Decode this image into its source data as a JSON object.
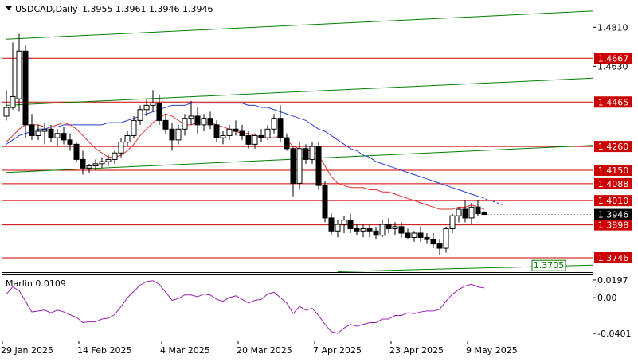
{
  "header": {
    "symbol": "USDCAD,Daily",
    "ohlc": "1.3955 1.3961 1.3946 1.3946"
  },
  "indicator": {
    "label": "Marlin 0.0109",
    "axis_ticks": [
      "0.0197",
      "0.00",
      "-0.0401"
    ]
  },
  "colors": {
    "candle": "#000000",
    "support_resistance": "#cc0000",
    "channel": "#008000",
    "ma_fast": "#e03030",
    "ma_slow": "#2a3fd6",
    "oscillator": "#9b1fb3",
    "current_price_tag": "#000000"
  },
  "chart_data": {
    "type": "candlestick",
    "symbol": "USDCAD",
    "timeframe": "Daily",
    "ylim": [
      1.368,
      1.4925
    ],
    "price_axis_ticks": [
      1.481,
      1.463
    ],
    "horizontal_levels": [
      1.4667,
      1.4465,
      1.426,
      1.415,
      1.4088,
      1.401,
      1.3898,
      1.3746
    ],
    "current_price": 1.3946,
    "channel_label": "1.3705",
    "x_labels": [
      "29 Jan 2025",
      "14 Feb 2025",
      "4 Mar 2025",
      "20 Mar 2025",
      "7 Apr 2025",
      "23 Apr 2025",
      "9 May 2025"
    ],
    "x_label_index": [
      0,
      12,
      25,
      37,
      49,
      61,
      73
    ],
    "candles": [
      [
        1.44,
        1.452,
        1.438,
        1.444
      ],
      [
        1.444,
        1.474,
        1.443,
        1.449
      ],
      [
        1.448,
        1.478,
        1.442,
        1.47
      ],
      [
        1.47,
        1.473,
        1.43,
        1.436
      ],
      [
        1.436,
        1.441,
        1.429,
        1.431
      ],
      [
        1.431,
        1.436,
        1.429,
        1.433
      ],
      [
        1.433,
        1.437,
        1.427,
        1.434
      ],
      [
        1.434,
        1.436,
        1.428,
        1.43
      ],
      [
        1.43,
        1.434,
        1.426,
        1.432
      ],
      [
        1.432,
        1.435,
        1.427,
        1.429
      ],
      [
        1.429,
        1.432,
        1.424,
        1.427
      ],
      [
        1.427,
        1.428,
        1.419,
        1.42
      ],
      [
        1.42,
        1.424,
        1.413,
        1.416
      ],
      [
        1.416,
        1.418,
        1.414,
        1.417
      ],
      [
        1.417,
        1.42,
        1.415,
        1.418
      ],
      [
        1.418,
        1.421,
        1.416,
        1.419
      ],
      [
        1.419,
        1.422,
        1.417,
        1.42
      ],
      [
        1.42,
        1.424,
        1.418,
        1.423
      ],
      [
        1.423,
        1.43,
        1.421,
        1.428
      ],
      [
        1.428,
        1.433,
        1.426,
        1.431
      ],
      [
        1.431,
        1.44,
        1.43,
        1.438
      ],
      [
        1.438,
        1.445,
        1.436,
        1.443
      ],
      [
        1.443,
        1.448,
        1.44,
        1.445
      ],
      [
        1.445,
        1.452,
        1.442,
        1.446
      ],
      [
        1.446,
        1.45,
        1.436,
        1.438
      ],
      [
        1.438,
        1.441,
        1.432,
        1.434
      ],
      [
        1.434,
        1.437,
        1.424,
        1.429
      ],
      [
        1.429,
        1.436,
        1.427,
        1.434
      ],
      [
        1.434,
        1.441,
        1.431,
        1.439
      ],
      [
        1.439,
        1.447,
        1.436,
        1.44
      ],
      [
        1.44,
        1.444,
        1.432,
        1.436
      ],
      [
        1.436,
        1.441,
        1.433,
        1.439
      ],
      [
        1.439,
        1.442,
        1.434,
        1.436
      ],
      [
        1.436,
        1.438,
        1.428,
        1.43
      ],
      [
        1.43,
        1.433,
        1.427,
        1.431
      ],
      [
        1.431,
        1.436,
        1.429,
        1.434
      ],
      [
        1.434,
        1.438,
        1.431,
        1.433
      ],
      [
        1.433,
        1.436,
        1.429,
        1.431
      ],
      [
        1.431,
        1.433,
        1.425,
        1.427
      ],
      [
        1.427,
        1.432,
        1.425,
        1.431
      ],
      [
        1.431,
        1.434,
        1.428,
        1.43
      ],
      [
        1.43,
        1.436,
        1.429,
        1.434
      ],
      [
        1.434,
        1.441,
        1.432,
        1.439
      ],
      [
        1.439,
        1.445,
        1.428,
        1.43
      ],
      [
        1.43,
        1.432,
        1.424,
        1.425
      ],
      [
        1.425,
        1.426,
        1.403,
        1.409
      ],
      [
        1.409,
        1.428,
        1.406,
        1.425
      ],
      [
        1.425,
        1.427,
        1.418,
        1.42
      ],
      [
        1.42,
        1.428,
        1.418,
        1.426
      ],
      [
        1.426,
        1.428,
        1.406,
        1.408
      ],
      [
        1.408,
        1.41,
        1.391,
        1.393
      ],
      [
        1.393,
        1.395,
        1.385,
        1.387
      ],
      [
        1.387,
        1.392,
        1.384,
        1.39
      ],
      [
        1.39,
        1.394,
        1.386,
        1.392
      ],
      [
        1.392,
        1.395,
        1.386,
        1.388
      ],
      [
        1.388,
        1.39,
        1.385,
        1.387
      ],
      [
        1.387,
        1.39,
        1.384,
        1.388
      ],
      [
        1.388,
        1.39,
        1.384,
        1.387
      ],
      [
        1.387,
        1.389,
        1.383,
        1.385
      ],
      [
        1.385,
        1.392,
        1.384,
        1.39
      ],
      [
        1.39,
        1.393,
        1.386,
        1.388
      ],
      [
        1.388,
        1.391,
        1.385,
        1.389
      ],
      [
        1.389,
        1.391,
        1.384,
        1.386
      ],
      [
        1.386,
        1.388,
        1.383,
        1.384
      ],
      [
        1.384,
        1.387,
        1.382,
        1.386
      ],
      [
        1.386,
        1.389,
        1.382,
        1.384
      ],
      [
        1.384,
        1.386,
        1.381,
        1.383
      ],
      [
        1.383,
        1.386,
        1.379,
        1.381
      ],
      [
        1.381,
        1.383,
        1.376,
        1.379
      ],
      [
        1.379,
        1.389,
        1.377,
        1.388
      ],
      [
        1.388,
        1.395,
        1.386,
        1.394
      ],
      [
        1.394,
        1.398,
        1.391,
        1.397
      ],
      [
        1.397,
        1.401,
        1.391,
        1.393
      ],
      [
        1.393,
        1.4,
        1.39,
        1.398
      ],
      [
        1.398,
        1.401,
        1.394,
        1.395
      ],
      [
        1.3955,
        1.3961,
        1.3946,
        1.3946
      ]
    ],
    "ma_fast": [
      1.428,
      1.431,
      1.434,
      1.436,
      1.436,
      1.436,
      1.435,
      1.435,
      1.436,
      1.437,
      1.436,
      1.434,
      1.431,
      1.428,
      1.425,
      1.423,
      1.421,
      1.421,
      1.422,
      1.424,
      1.427,
      1.431,
      1.434,
      1.437,
      1.439,
      1.441,
      1.44,
      1.438,
      1.436,
      1.436,
      1.437,
      1.437,
      1.437,
      1.436,
      1.435,
      1.434,
      1.433,
      1.432,
      1.432,
      1.431,
      1.43,
      1.43,
      1.43,
      1.431,
      1.429,
      1.426,
      1.425,
      1.424,
      1.424,
      1.422,
      1.417,
      1.412,
      1.409,
      1.408,
      1.407,
      1.407,
      1.407,
      1.406,
      1.406,
      1.405,
      1.405,
      1.404,
      1.403,
      1.402,
      1.401,
      1.4,
      1.399,
      1.398,
      1.397,
      1.397,
      1.397,
      1.398,
      1.398,
      1.399,
      1.398,
      1.397
    ],
    "ma_slow": [
      1.427,
      1.429,
      1.431,
      1.432,
      1.433,
      1.434,
      1.434,
      1.435,
      1.435,
      1.436,
      1.436,
      1.436,
      1.436,
      1.436,
      1.436,
      1.436,
      1.437,
      1.437,
      1.437,
      1.438,
      1.439,
      1.44,
      1.441,
      1.442,
      1.443,
      1.444,
      1.445,
      1.445,
      1.445,
      1.446,
      1.446,
      1.446,
      1.446,
      1.446,
      1.446,
      1.446,
      1.446,
      1.446,
      1.445,
      1.445,
      1.444,
      1.444,
      1.443,
      1.442,
      1.441,
      1.44,
      1.439,
      1.438,
      1.436,
      1.434,
      1.433,
      1.431,
      1.429,
      1.427,
      1.425,
      1.424,
      1.422,
      1.421,
      1.419,
      1.418,
      1.417,
      1.416,
      1.415,
      1.414,
      1.413,
      1.412,
      1.411,
      1.41,
      1.409,
      1.408,
      1.407,
      1.406,
      1.405,
      1.404,
      1.403
    ],
    "channel_lines": [
      {
        "x": [
          0,
          92
        ],
        "y": [
          1.4755,
          1.4885
        ]
      },
      {
        "x": [
          0,
          92
        ],
        "y": [
          1.445,
          1.4575
        ]
      },
      {
        "x": [
          0,
          92
        ],
        "y": [
          1.414,
          1.4265
        ]
      },
      {
        "x": [
          52,
          92
        ],
        "y": [
          1.3682,
          1.3712
        ]
      }
    ],
    "marlin": [
      0.004,
      0.012,
      0.008,
      -0.004,
      -0.016,
      -0.015,
      -0.014,
      -0.017,
      -0.014,
      -0.016,
      -0.019,
      -0.022,
      -0.028,
      -0.027,
      -0.027,
      -0.024,
      -0.023,
      -0.019,
      -0.01,
      0.0,
      0.007,
      0.014,
      0.018,
      0.019,
      0.015,
      0.006,
      -0.003,
      -0.001,
      0.003,
      0.003,
      0.001,
      0.004,
      0.003,
      -0.002,
      -0.004,
      0.0,
      0.002,
      -0.002,
      -0.006,
      -0.003,
      -0.002,
      0.004,
      0.006,
      0.0,
      -0.006,
      -0.018,
      -0.01,
      -0.014,
      -0.012,
      -0.02,
      -0.03,
      -0.038,
      -0.04,
      -0.034,
      -0.03,
      -0.032,
      -0.03,
      -0.028,
      -0.028,
      -0.024,
      -0.024,
      -0.02,
      -0.02,
      -0.017,
      -0.018,
      -0.016,
      -0.015,
      -0.015,
      -0.013,
      -0.004,
      0.004,
      0.009,
      0.013,
      0.015,
      0.012,
      0.0109
    ],
    "marlin_ylim": [
      -0.048,
      0.025
    ],
    "marlin_ticks": [
      0.0197,
      0,
      -0.0401
    ],
    "grid": false
  }
}
